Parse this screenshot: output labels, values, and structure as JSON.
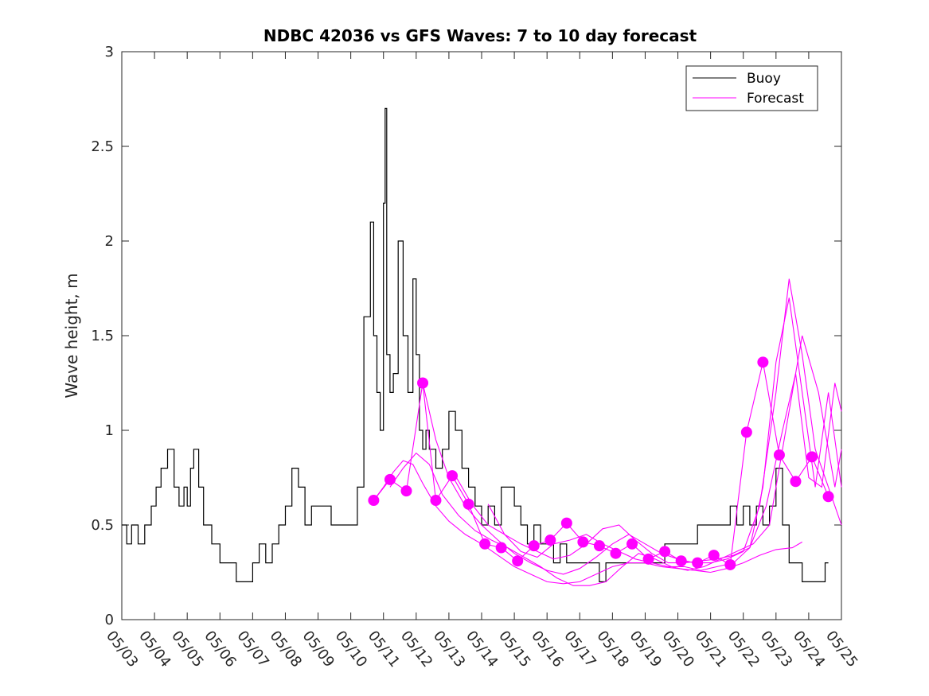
{
  "chart_data": {
    "type": "line",
    "title": "NDBC 42036 vs GFS Waves: 7 to 10 day forecast",
    "xlabel": "",
    "ylabel": "Wave height, m",
    "ylim": [
      0,
      3
    ],
    "yticks": [
      "0",
      "0.5",
      "1",
      "1.5",
      "2",
      "2.5",
      "3"
    ],
    "xlim": [
      0,
      22
    ],
    "xticks": [
      "05/03",
      "05/04",
      "05/05",
      "05/06",
      "05/07",
      "05/08",
      "05/09",
      "05/10",
      "05/11",
      "05/12",
      "05/13",
      "05/14",
      "05/15",
      "05/16",
      "05/17",
      "05/18",
      "05/19",
      "05/20",
      "05/21",
      "05/22",
      "05/23",
      "05/24",
      "05/25"
    ],
    "legend": {
      "placement": "top-right",
      "entries": [
        "Buoy",
        "Forecast"
      ]
    },
    "colors": {
      "buoy": "#000000",
      "forecast": "#ff00ff",
      "axes": "#262626"
    },
    "series": [
      {
        "name": "Buoy",
        "x": [
          0,
          0.15,
          0.3,
          0.5,
          0.7,
          0.9,
          1.05,
          1.2,
          1.4,
          1.6,
          1.75,
          1.9,
          2.0,
          2.1,
          2.2,
          2.35,
          2.5,
          2.75,
          3.0,
          3.25,
          3.5,
          3.75,
          4.0,
          4.2,
          4.4,
          4.6,
          4.8,
          5.0,
          5.2,
          5.4,
          5.6,
          5.8,
          6.0,
          6.2,
          6.4,
          6.6,
          6.8,
          7.0,
          7.2,
          7.4,
          7.6,
          7.7,
          7.8,
          7.9,
          8.0,
          8.05,
          8.1,
          8.2,
          8.3,
          8.45,
          8.6,
          8.75,
          8.9,
          9.0,
          9.1,
          9.2,
          9.3,
          9.4,
          9.6,
          9.8,
          10.0,
          10.2,
          10.4,
          10.6,
          10.8,
          11.0,
          11.2,
          11.4,
          11.6,
          11.8,
          12.0,
          12.2,
          12.4,
          12.6,
          12.8,
          13.0,
          13.2,
          13.4,
          13.6,
          13.8,
          14.0,
          14.2,
          14.4,
          14.6,
          14.8,
          15.0,
          15.2,
          15.4,
          15.6,
          15.8,
          16.0,
          16.2,
          16.4,
          16.6,
          16.8,
          17.0,
          17.2,
          17.4,
          17.6,
          17.8,
          18.0,
          18.2,
          18.4,
          18.6,
          18.8,
          19.0,
          19.2,
          19.4,
          19.6,
          19.8,
          20.0,
          20.2,
          20.4,
          20.6,
          20.8,
          21.0,
          21.2,
          21.4,
          21.5,
          21.6
        ],
        "y": [
          0.5,
          0.4,
          0.5,
          0.4,
          0.5,
          0.6,
          0.7,
          0.8,
          0.9,
          0.7,
          0.6,
          0.7,
          0.6,
          0.8,
          0.9,
          0.7,
          0.5,
          0.4,
          0.3,
          0.3,
          0.2,
          0.2,
          0.3,
          0.4,
          0.3,
          0.4,
          0.5,
          0.6,
          0.8,
          0.7,
          0.5,
          0.6,
          0.6,
          0.6,
          0.5,
          0.5,
          0.5,
          0.5,
          0.7,
          1.6,
          2.1,
          1.5,
          1.2,
          1.0,
          2.2,
          2.7,
          1.4,
          1.2,
          1.3,
          2.0,
          1.5,
          1.2,
          1.8,
          1.4,
          1.0,
          0.9,
          1.0,
          0.9,
          0.8,
          0.9,
          1.1,
          1.0,
          0.8,
          0.7,
          0.6,
          0.5,
          0.6,
          0.5,
          0.7,
          0.7,
          0.6,
          0.5,
          0.4,
          0.5,
          0.4,
          0.4,
          0.3,
          0.4,
          0.3,
          0.3,
          0.3,
          0.3,
          0.3,
          0.2,
          0.3,
          0.3,
          0.3,
          0.3,
          0.3,
          0.3,
          0.3,
          0.3,
          0.3,
          0.4,
          0.4,
          0.4,
          0.4,
          0.4,
          0.5,
          0.5,
          0.5,
          0.5,
          0.5,
          0.6,
          0.5,
          0.6,
          0.5,
          0.6,
          0.5,
          0.6,
          0.8,
          0.5,
          0.3,
          0.3,
          0.2,
          0.2,
          0.2,
          0.2,
          0.3,
          0.3
        ]
      },
      {
        "name": "Forecast",
        "lines": [
          {
            "x": [
              7.7,
              8.0,
              8.3,
              8.6,
              8.9,
              9.2,
              9.6,
              10.0,
              10.5,
              11.0,
              11.5,
              12.0,
              12.5,
              13.0,
              13.5,
              14.0,
              14.5,
              15.0,
              15.5,
              16.0,
              16.5,
              17.0,
              17.5,
              18.0,
              18.5,
              19.0,
              19.5,
              20.0,
              20.5,
              20.8
            ],
            "y": [
              0.63,
              0.7,
              0.78,
              0.84,
              0.82,
              0.72,
              0.6,
              0.52,
              0.45,
              0.4,
              0.34,
              0.28,
              0.24,
              0.2,
              0.19,
              0.2,
              0.24,
              0.28,
              0.3,
              0.3,
              0.28,
              0.27,
              0.26,
              0.25,
              0.27,
              0.3,
              0.34,
              0.37,
              0.38,
              0.41
            ]
          },
          {
            "x": [
              8.2,
              8.6,
              9.0,
              9.4,
              9.8,
              10.3,
              10.8,
              11.3,
              11.8,
              12.3,
              12.8,
              13.3,
              13.8,
              14.3,
              14.8,
              15.3,
              15.8,
              16.3,
              16.8,
              17.3,
              17.8,
              18.3,
              18.8,
              19.3,
              19.8,
              20.3,
              20.8,
              21.3,
              21.8,
              22.0
            ],
            "y": [
              0.7,
              0.8,
              0.88,
              0.82,
              0.66,
              0.55,
              0.47,
              0.42,
              0.38,
              0.33,
              0.28,
              0.22,
              0.18,
              0.18,
              0.2,
              0.28,
              0.35,
              0.32,
              0.28,
              0.26,
              0.28,
              0.32,
              0.36,
              0.4,
              0.5,
              1.0,
              1.5,
              1.2,
              0.7,
              0.9
            ]
          },
          {
            "x": [
              9.2,
              9.6,
              10.0,
              10.5,
              11.0,
              11.5,
              12.0,
              12.5,
              13.0,
              13.5,
              14.0,
              14.5,
              15.0,
              15.5,
              16.0,
              16.5,
              17.0,
              17.5,
              18.0,
              18.5,
              19.0,
              19.5,
              20.0,
              20.4,
              20.8,
              21.2,
              21.6,
              22.0
            ],
            "y": [
              1.25,
              0.95,
              0.75,
              0.6,
              0.5,
              0.42,
              0.35,
              0.3,
              0.26,
              0.24,
              0.27,
              0.33,
              0.4,
              0.45,
              0.4,
              0.35,
              0.32,
              0.3,
              0.3,
              0.32,
              0.36,
              0.6,
              1.2,
              1.8,
              1.4,
              0.9,
              0.7,
              0.5
            ]
          },
          {
            "x": [
              10.2,
              10.7,
              11.2,
              11.7,
              12.2,
              12.7,
              13.2,
              13.7,
              14.2,
              14.7,
              15.2,
              15.7,
              16.2,
              16.7,
              17.2,
              17.7,
              18.2,
              18.7,
              19.2,
              19.6,
              20.0,
              20.4,
              20.8,
              21.2,
              21.6,
              22.0
            ],
            "y": [
              0.76,
              0.61,
              0.5,
              0.45,
              0.4,
              0.36,
              0.32,
              0.34,
              0.4,
              0.48,
              0.5,
              0.42,
              0.35,
              0.3,
              0.3,
              0.31,
              0.32,
              0.34,
              0.38,
              0.7,
              1.36,
              1.7,
              1.2,
              0.7,
              1.2,
              0.7
            ]
          },
          {
            "x": [
              11.2,
              11.7,
              12.2,
              12.7,
              13.2,
              13.7,
              14.2,
              14.7,
              15.2,
              15.7,
              16.2,
              16.7,
              17.2,
              17.7,
              18.2,
              18.7,
              19.2,
              19.7,
              20.2,
              20.6,
              21.0,
              21.4,
              21.8,
              22.0
            ],
            "y": [
              0.61,
              0.45,
              0.36,
              0.33,
              0.4,
              0.42,
              0.45,
              0.4,
              0.36,
              0.32,
              0.3,
              0.28,
              0.28,
              0.26,
              0.28,
              0.3,
              0.38,
              0.6,
              1.0,
              1.3,
              0.75,
              0.7,
              1.25,
              1.1
            ]
          },
          {
            "x": [
              7.7,
              8.2,
              8.7,
              9.2,
              9.6,
              10.1,
              10.6,
              11.1,
              11.6,
              12.1,
              12.6,
              13.1,
              13.6,
              14.1,
              14.6,
              15.1,
              15.6,
              16.1,
              16.6,
              17.1,
              17.6,
              18.1,
              18.6,
              19.1,
              19.6,
              20.1,
              20.6,
              21.1,
              21.6
            ],
            "y": [
              0.63,
              0.74,
              0.68,
              1.25,
              0.63,
              0.76,
              0.61,
              0.4,
              0.38,
              0.31,
              0.39,
              0.42,
              0.51,
              0.41,
              0.39,
              0.35,
              0.4,
              0.32,
              0.36,
              0.31,
              0.3,
              0.34,
              0.29,
              0.99,
              1.36,
              0.87,
              0.73,
              0.86,
              0.65
            ]
          }
        ],
        "markers": {
          "x": [
            7.7,
            8.2,
            8.7,
            9.2,
            9.6,
            10.1,
            10.6,
            11.1,
            11.6,
            12.1,
            12.6,
            13.1,
            13.6,
            14.1,
            14.6,
            15.1,
            15.6,
            16.1,
            16.6,
            17.1,
            17.6,
            18.1,
            18.6,
            19.1,
            19.6,
            20.1,
            20.6,
            21.1,
            21.6
          ],
          "y": [
            0.63,
            0.74,
            0.68,
            1.25,
            0.63,
            0.76,
            0.61,
            0.4,
            0.38,
            0.31,
            0.39,
            0.42,
            0.51,
            0.41,
            0.39,
            0.35,
            0.4,
            0.32,
            0.36,
            0.31,
            0.3,
            0.34,
            0.29,
            0.99,
            1.36,
            0.87,
            0.73,
            0.86,
            0.65
          ]
        }
      }
    ]
  }
}
